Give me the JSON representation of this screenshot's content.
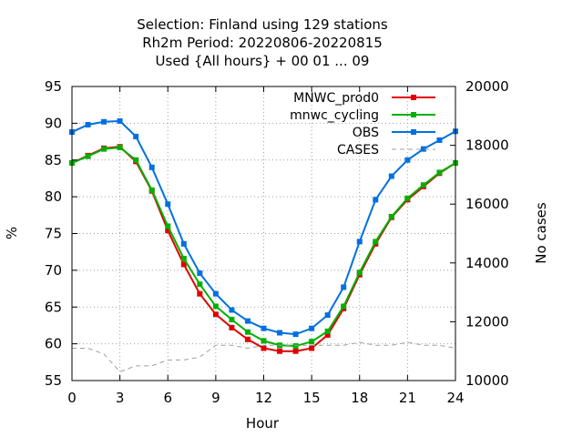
{
  "chart_data": {
    "type": "line",
    "title_lines": [
      "Selection: Finland using   129 stations",
      "Rh2m   Period: 20220806-20220815",
      "Used {All hours} + 00 01 ... 09"
    ],
    "xlabel": "Hour",
    "ylabel": "%",
    "y2label": "No cases",
    "xlim": [
      0,
      24
    ],
    "ylim": [
      55,
      95
    ],
    "y2lim": [
      10000,
      20000
    ],
    "xticks": [
      0,
      3,
      6,
      9,
      12,
      15,
      18,
      21,
      24
    ],
    "yticks": [
      55,
      60,
      65,
      70,
      75,
      80,
      85,
      90,
      95
    ],
    "y2ticks": [
      10000,
      12000,
      14000,
      16000,
      18000,
      20000
    ],
    "grid": true,
    "legend_position": "top-right",
    "x": [
      0,
      1,
      2,
      3,
      4,
      5,
      6,
      7,
      8,
      9,
      10,
      11,
      12,
      13,
      14,
      15,
      16,
      17,
      18,
      19,
      20,
      21,
      22,
      23,
      24
    ],
    "series": [
      {
        "name": "MNWC_prod0",
        "color": "#e00000",
        "axis": "y",
        "values": [
          84.6,
          85.6,
          86.6,
          86.8,
          84.8,
          80.8,
          75.4,
          70.8,
          66.8,
          64.0,
          62.2,
          60.6,
          59.4,
          59.0,
          59.0,
          59.4,
          61.2,
          64.8,
          69.4,
          73.6,
          77.2,
          79.6,
          81.4,
          83.2,
          84.6
        ]
      },
      {
        "name": "mnwc_cycling",
        "color": "#00b000",
        "axis": "y",
        "values": [
          84.6,
          85.5,
          86.5,
          86.7,
          85.0,
          80.9,
          76.0,
          71.6,
          68.1,
          65.1,
          63.3,
          61.6,
          60.4,
          59.8,
          59.7,
          60.3,
          61.7,
          65.1,
          69.7,
          73.9,
          77.3,
          79.8,
          81.6,
          83.3,
          84.6
        ]
      },
      {
        "name": "OBS",
        "color": "#0070e0",
        "axis": "y",
        "values": [
          88.8,
          89.8,
          90.2,
          90.3,
          88.2,
          84.0,
          79.0,
          73.6,
          69.6,
          66.8,
          64.6,
          63.1,
          62.1,
          61.5,
          61.3,
          62.1,
          63.9,
          67.7,
          73.9,
          79.6,
          82.8,
          85.0,
          86.5,
          87.7,
          88.9
        ]
      },
      {
        "name": "CASES",
        "color": "#a0a0a0",
        "axis": "y2",
        "dashed": true,
        "values": [
          11100,
          11100,
          10900,
          10300,
          10500,
          10500,
          10700,
          10700,
          10800,
          11200,
          11200,
          11100,
          11200,
          11200,
          11200,
          11200,
          11200,
          11200,
          11300,
          11200,
          11200,
          11300,
          11200,
          11200,
          11100
        ]
      }
    ]
  }
}
